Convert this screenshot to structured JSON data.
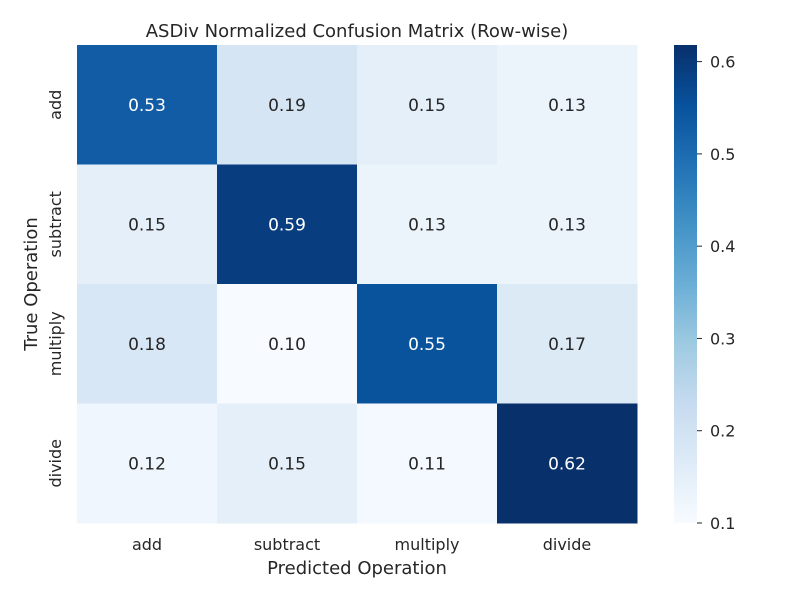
{
  "chart_data": {
    "type": "heatmap",
    "title": "ASDiv Normalized Confusion Matrix (Row-wise)",
    "xlabel": "Predicted Operation",
    "ylabel": "True Operation",
    "x_categories": [
      "add",
      "subtract",
      "multiply",
      "divide"
    ],
    "y_categories": [
      "add",
      "subtract",
      "multiply",
      "divide"
    ],
    "values": [
      [
        0.53,
        0.19,
        0.15,
        0.13
      ],
      [
        0.15,
        0.59,
        0.13,
        0.13
      ],
      [
        0.18,
        0.1,
        0.55,
        0.17
      ],
      [
        0.12,
        0.15,
        0.11,
        0.62
      ]
    ],
    "value_labels": [
      [
        "0.53",
        "0.19",
        "0.15",
        "0.13"
      ],
      [
        "0.15",
        "0.59",
        "0.13",
        "0.13"
      ],
      [
        "0.18",
        "0.10",
        "0.55",
        "0.17"
      ],
      [
        "0.12",
        "0.15",
        "0.11",
        "0.62"
      ]
    ],
    "colormap": "Blues",
    "colorbar": {
      "range": [
        0.1,
        0.618
      ],
      "ticks": [
        0.1,
        0.2,
        0.3,
        0.4,
        0.5,
        0.6
      ],
      "tick_labels": [
        "0.1",
        "0.2",
        "0.3",
        "0.4",
        "0.5",
        "0.6"
      ]
    },
    "grid": false,
    "legend": "colorbar-right"
  }
}
